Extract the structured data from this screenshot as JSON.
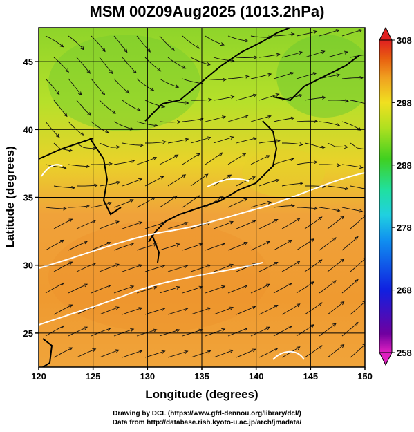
{
  "title": "MSM 00Z09Aug2025 (1013.2hPa)",
  "x_axis": {
    "label": "Longitude (degrees)",
    "ticks": [
      "120",
      "125",
      "130",
      "135",
      "140",
      "145",
      "150"
    ],
    "range": [
      120,
      150
    ]
  },
  "y_axis": {
    "label": "Latitude  (degrees)",
    "ticks": [
      "25",
      "30",
      "35",
      "40",
      "45"
    ],
    "range": [
      22.5,
      47.5
    ]
  },
  "colorbar": {
    "ticks": [
      "308",
      "298",
      "288",
      "278",
      "268",
      "258"
    ],
    "range": [
      258,
      308
    ],
    "colors": [
      "#e020c0",
      "#7000a0",
      "#1020e0",
      "#1090f0",
      "#20d0e0",
      "#20e0a0",
      "#40d020",
      "#b0e020",
      "#f0e020",
      "#f0a020",
      "#e86010",
      "#e02020"
    ]
  },
  "credits": {
    "line1": "Drawing by DCL (https://www.gfd-dennou.org/library/dcl/)",
    "line2": "Data from http://database.rish.kyoto-u.ac.jp/arch/jmadata/"
  }
}
